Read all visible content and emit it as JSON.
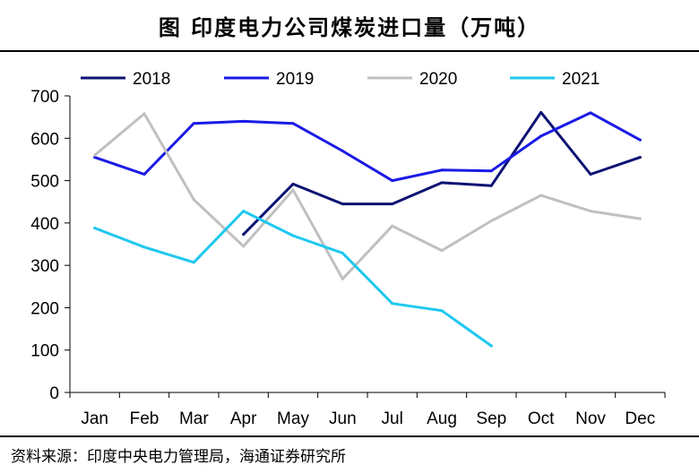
{
  "figure": {
    "title": "图  印度电力公司煤炭进口量（万吨）",
    "source": "资料来源：印度中央电力管理局，海通证券研究所"
  },
  "chart_data": {
    "type": "line",
    "title": "印度电力公司煤炭进口量（万吨）",
    "xlabel": "",
    "ylabel": "",
    "categories": [
      "Jan",
      "Feb",
      "Mar",
      "Apr",
      "May",
      "Jun",
      "Jul",
      "Aug",
      "Sep",
      "Oct",
      "Nov",
      "Dec"
    ],
    "ylim": [
      0,
      700
    ],
    "yticks": [
      0,
      100,
      200,
      300,
      400,
      500,
      600,
      700
    ],
    "grid": false,
    "legend_position": "top",
    "series": [
      {
        "name": "2018",
        "color": "#0d1272",
        "values": [
          null,
          null,
          null,
          373,
          492,
          445,
          445,
          495,
          488,
          661,
          515,
          555
        ]
      },
      {
        "name": "2019",
        "color": "#1a1ae6",
        "values": [
          555,
          515,
          635,
          640,
          635,
          570,
          500,
          525,
          523,
          605,
          660,
          596
        ]
      },
      {
        "name": "2020",
        "color": "#c0c0c0",
        "values": [
          560,
          658,
          455,
          345,
          478,
          268,
          393,
          335,
          405,
          465,
          428,
          410
        ]
      },
      {
        "name": "2021",
        "color": "#1ec8f0",
        "values": [
          388,
          343,
          307,
          428,
          370,
          329,
          210,
          193,
          110,
          null,
          null,
          null
        ]
      }
    ]
  }
}
